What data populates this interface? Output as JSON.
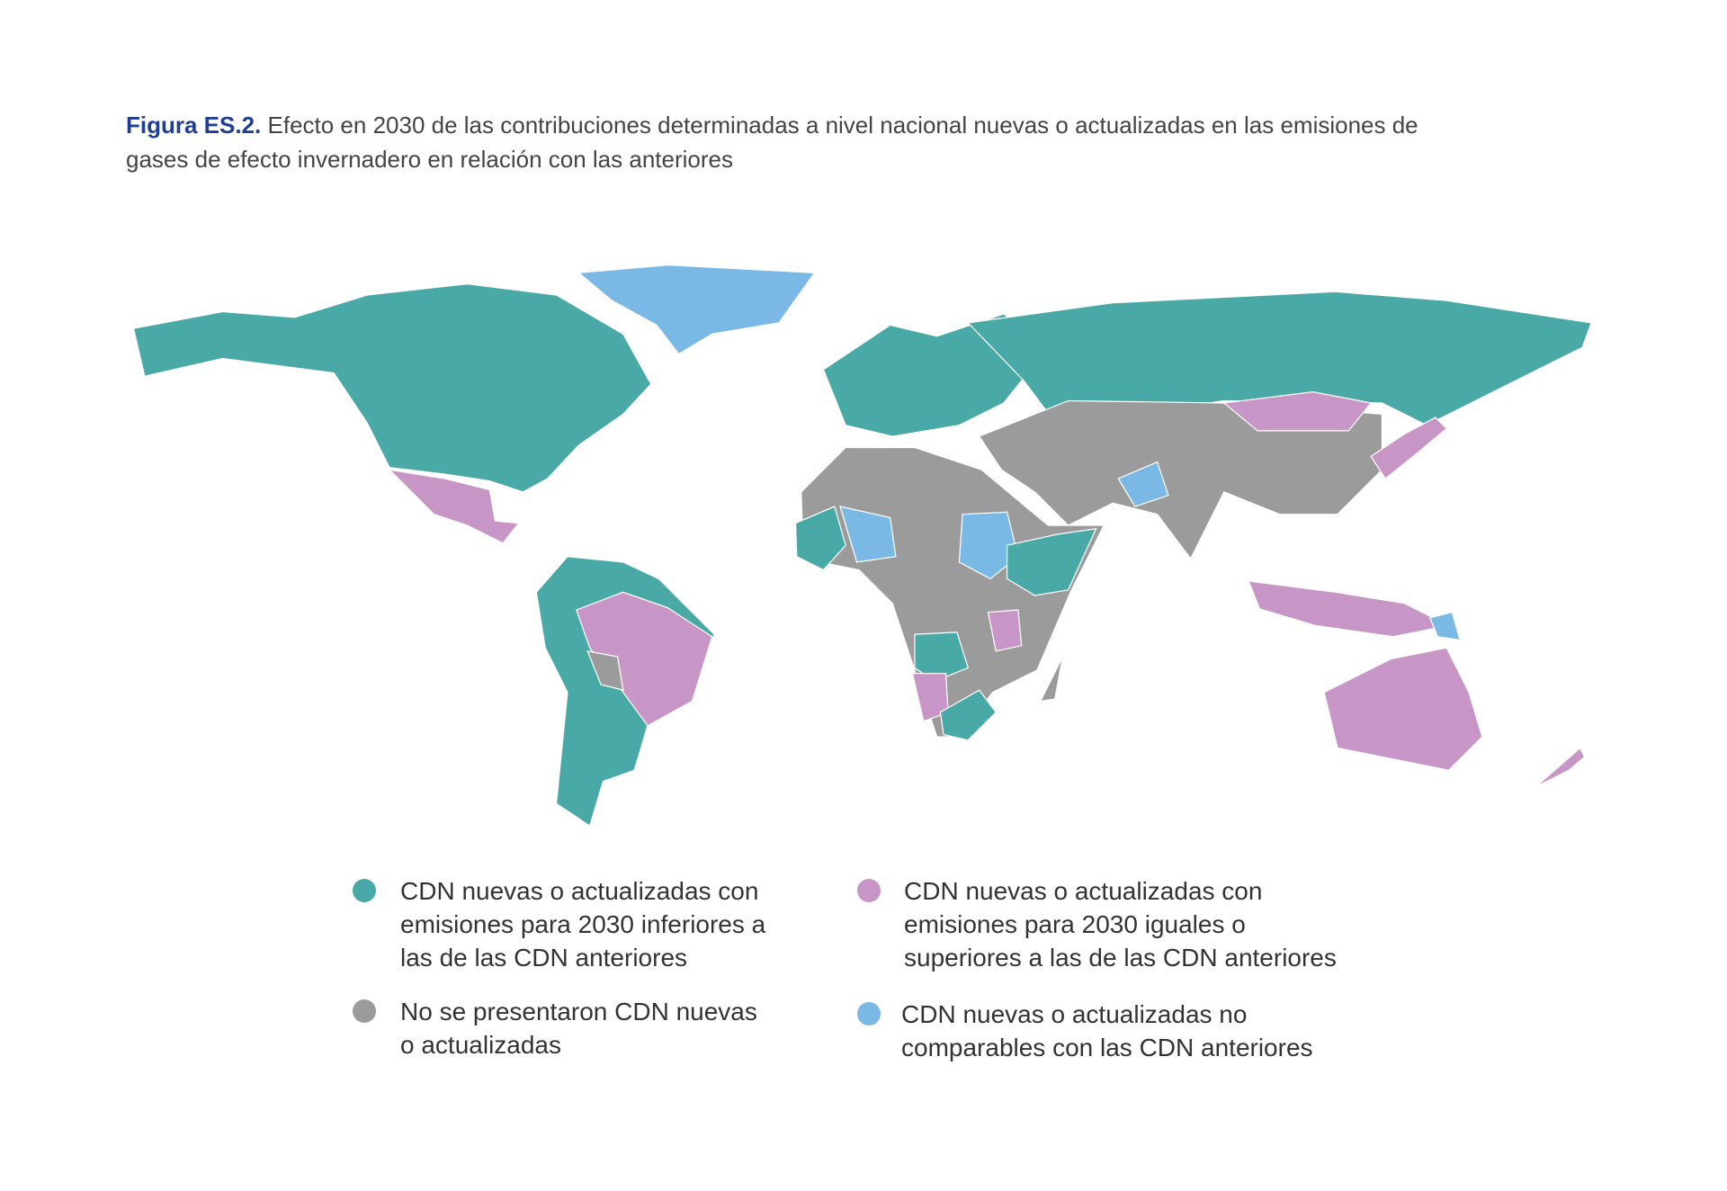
{
  "title": {
    "label": "Figura ES.2.",
    "lines": [
      "Efecto en 2030 de las contribuciones determinadas a nivel nacional nuevas o actualizadas en las emisiones de",
      "gases de efecto invernadero en relación con las anteriores"
    ]
  },
  "legend": [
    {
      "lines": [
        "CDN nuevas o actualizadas con",
        "emisiones para 2030 inferiores a",
        "las de las CDN anteriores"
      ],
      "color": "#49a9a6"
    },
    {
      "lines": [
        "CDN nuevas o actualizadas con",
        "emisiones para 2030 iguales o",
        "superiores a las de las CDN anteriores"
      ],
      "color": "#c896c6"
    },
    {
      "lines": [
        "No se presentaron CDN nuevas",
        "o actualizadas"
      ],
      "color": "#9b9b9b"
    },
    {
      "lines": [
        "CDN nuevas o actualizadas no",
        "comparables con las CDN anteriores"
      ],
      "color": "#7ab9e6"
    }
  ]
}
